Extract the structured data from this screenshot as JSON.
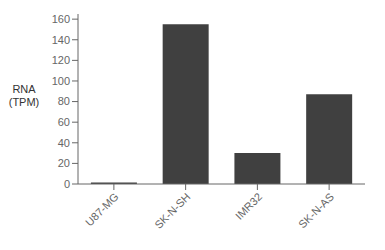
{
  "chart_data": {
    "type": "bar",
    "categories": [
      "U87-MG",
      "SK-N-SH",
      "IMR32",
      "SK-N-AS"
    ],
    "values": [
      1.5,
      155,
      30,
      87
    ],
    "color": "#404040",
    "y_label": "RNA\n(TPM)",
    "ylim": [
      0,
      165
    ],
    "yticks": [
      0,
      20,
      40,
      60,
      80,
      100,
      120,
      140,
      160
    ],
    "grid": false
  }
}
